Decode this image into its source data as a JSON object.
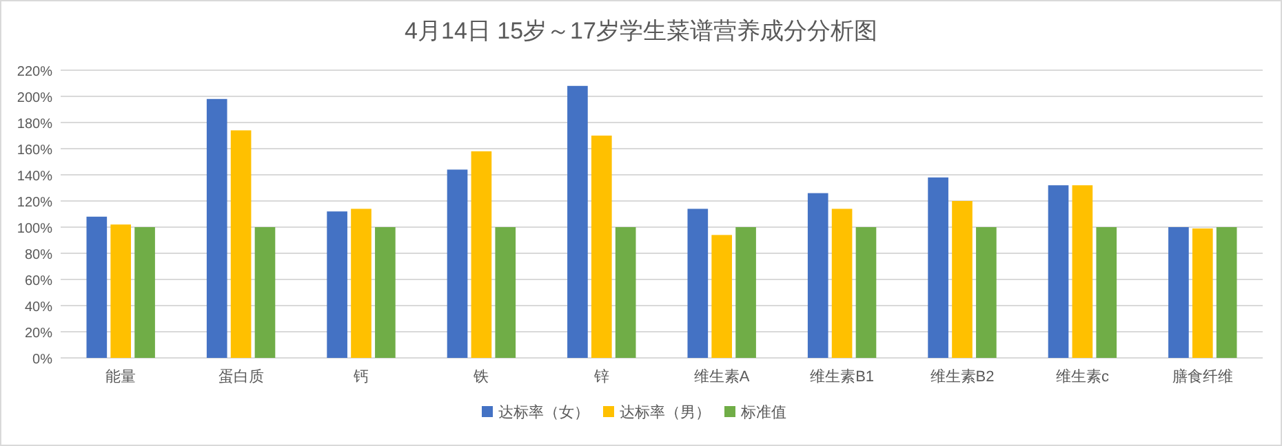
{
  "chart_data": {
    "type": "bar",
    "title": "4月14日 15岁～17岁学生菜谱营养成分分析图",
    "categories": [
      "能量",
      "蛋白质",
      "钙",
      "铁",
      "锌",
      "维生素A",
      "维生素B1",
      "维生素B2",
      "维生素c",
      "膳食纤维"
    ],
    "series": [
      {
        "name": "达标率（女）",
        "color": "#4472c4",
        "values": [
          108,
          198,
          112,
          144,
          208,
          114,
          126,
          138,
          132,
          100
        ]
      },
      {
        "name": "达标率（男）",
        "color": "#ffc000",
        "values": [
          102,
          174,
          114,
          158,
          170,
          94,
          114,
          120,
          132,
          99
        ]
      },
      {
        "name": "标准值",
        "color": "#70ad47",
        "values": [
          100,
          100,
          100,
          100,
          100,
          100,
          100,
          100,
          100,
          100
        ]
      }
    ],
    "ylim": [
      0,
      220
    ],
    "yticks": [
      {
        "value": 0,
        "label": "0%"
      },
      {
        "value": 20,
        "label": "20%"
      },
      {
        "value": 40,
        "label": "40%"
      },
      {
        "value": 60,
        "label": "60%"
      },
      {
        "value": 80,
        "label": "80%"
      },
      {
        "value": 100,
        "label": "100%"
      },
      {
        "value": 120,
        "label": "120%"
      },
      {
        "value": 140,
        "label": "140%"
      },
      {
        "value": 160,
        "label": "160%"
      },
      {
        "value": 180,
        "label": "180%"
      },
      {
        "value": 200,
        "label": "200%"
      },
      {
        "value": 220,
        "label": "220%"
      }
    ],
    "grid": "y",
    "legend": "bottom"
  }
}
